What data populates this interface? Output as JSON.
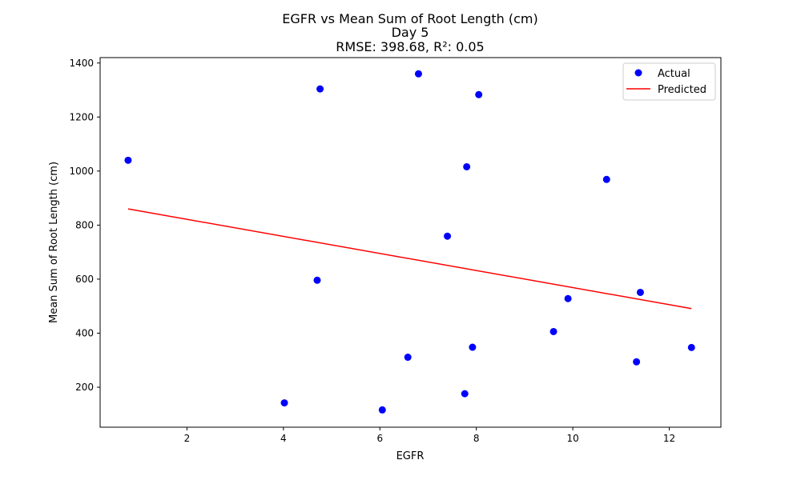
{
  "chart_data": {
    "type": "scatter",
    "title_lines": [
      "EGFR vs Mean Sum of Root Length (cm)",
      "Day 5",
      "RMSE: 398.68, R²: 0.05"
    ],
    "xlabel": "EGFR",
    "ylabel": "Mean Sum of Root Length (cm)",
    "xlim": [
      0.2,
      13.07
    ],
    "ylim": [
      52,
      1420
    ],
    "xticks": [
      2,
      4,
      6,
      8,
      10,
      12
    ],
    "yticks": [
      200,
      400,
      600,
      800,
      1000,
      1200,
      1400
    ],
    "xtick_labels": [
      "2",
      "4",
      "6",
      "8",
      "10",
      "12"
    ],
    "ytick_labels": [
      "200",
      "400",
      "600",
      "800",
      "1000",
      "1200",
      "1400"
    ],
    "grid": false,
    "legend": {
      "placement": "top-right",
      "entries": [
        {
          "label": "Actual",
          "marker": "circle",
          "color": "#0000ff"
        },
        {
          "label": "Predicted",
          "marker": "line",
          "color": "#ff0000"
        }
      ]
    },
    "series": [
      {
        "name": "Actual",
        "kind": "scatter",
        "color": "#0000ff",
        "points": [
          {
            "x": 0.78,
            "y": 1040
          },
          {
            "x": 4.02,
            "y": 142
          },
          {
            "x": 4.7,
            "y": 596
          },
          {
            "x": 4.76,
            "y": 1304
          },
          {
            "x": 6.05,
            "y": 116
          },
          {
            "x": 6.58,
            "y": 311
          },
          {
            "x": 6.8,
            "y": 1360
          },
          {
            "x": 7.4,
            "y": 759
          },
          {
            "x": 7.76,
            "y": 176
          },
          {
            "x": 7.8,
            "y": 1016
          },
          {
            "x": 7.92,
            "y": 348
          },
          {
            "x": 8.05,
            "y": 1283
          },
          {
            "x": 9.6,
            "y": 406
          },
          {
            "x": 9.9,
            "y": 528
          },
          {
            "x": 10.7,
            "y": 969
          },
          {
            "x": 11.32,
            "y": 294
          },
          {
            "x": 11.4,
            "y": 551
          },
          {
            "x": 12.46,
            "y": 347
          }
        ]
      },
      {
        "name": "Predicted",
        "kind": "line",
        "color": "#ff0000",
        "points": [
          {
            "x": 0.78,
            "y": 860
          },
          {
            "x": 12.46,
            "y": 491
          }
        ]
      }
    ]
  }
}
